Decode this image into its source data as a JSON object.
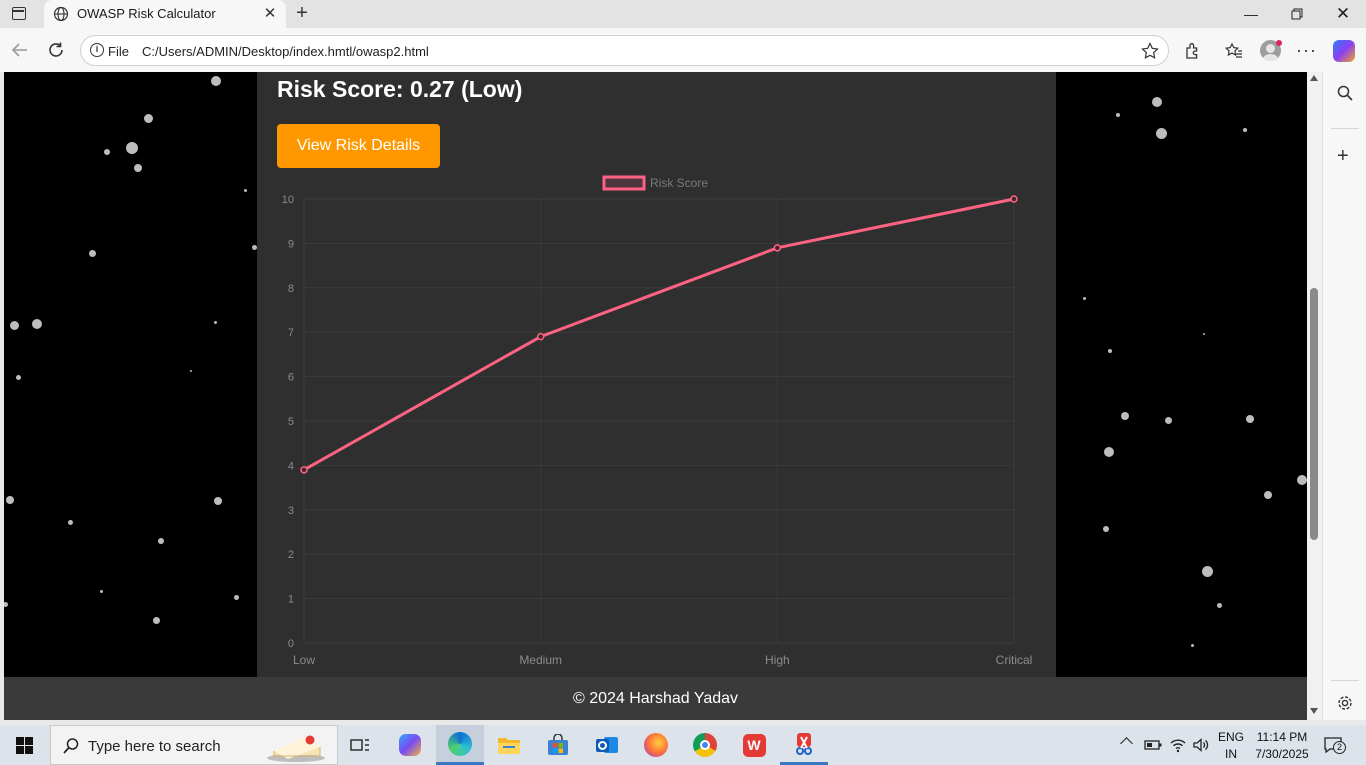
{
  "browser": {
    "tab_title": "OWASP Risk Calculator",
    "url_scheme_label": "File",
    "url": "C:/Users/ADMIN/Desktop/index.hmtl/owasp2.html"
  },
  "page": {
    "risk_score_text": "Risk Score: 0.27 (Low)",
    "details_button_label": "View Risk Details",
    "footer_text": "© 2024 Harshad Yadav"
  },
  "chart_data": {
    "type": "line",
    "categories": [
      "Low",
      "Medium",
      "High",
      "Critical"
    ],
    "series": [
      {
        "name": "Risk Score",
        "values": [
          3.9,
          6.9,
          8.9,
          10
        ]
      }
    ],
    "ylim": [
      0,
      10
    ],
    "yticks": [
      0,
      1,
      2,
      3,
      4,
      5,
      6,
      7,
      8,
      9,
      10
    ],
    "legend": "top-center",
    "grid": true,
    "line_color": "#ff6384"
  },
  "taskbar": {
    "search_placeholder": "Type here to search",
    "language": "ENG",
    "region": "IN",
    "time": "11:14 PM",
    "date": "7/30/2025",
    "notification_count": "2"
  }
}
